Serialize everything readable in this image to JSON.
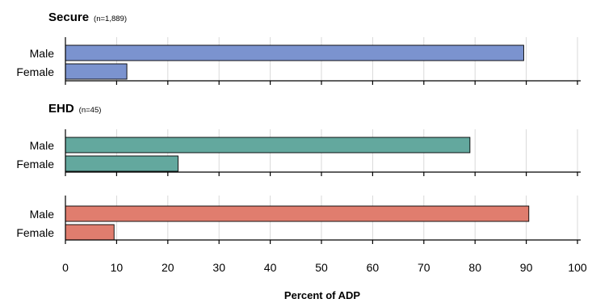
{
  "chart_data": {
    "type": "bar",
    "orientation": "horizontal",
    "categories": [
      "Male",
      "Female"
    ],
    "xlim": [
      0,
      100
    ],
    "xticks": [
      0,
      10,
      20,
      30,
      40,
      50,
      60,
      70,
      80,
      90,
      100
    ],
    "xlabel": "Percent of ADP",
    "grid": "vertical",
    "panels": [
      {
        "title": "Secure",
        "n_label": "(n=1,889)",
        "values": [
          89.5,
          12.0
        ],
        "color": "#7b93cf"
      },
      {
        "title": "EHD",
        "n_label": "(n=45)",
        "values": [
          79.0,
          22.0
        ],
        "color": "#63a89e"
      },
      {
        "title": "",
        "n_label": "",
        "values": [
          90.5,
          9.5
        ],
        "color": "#e07d6e"
      }
    ]
  }
}
